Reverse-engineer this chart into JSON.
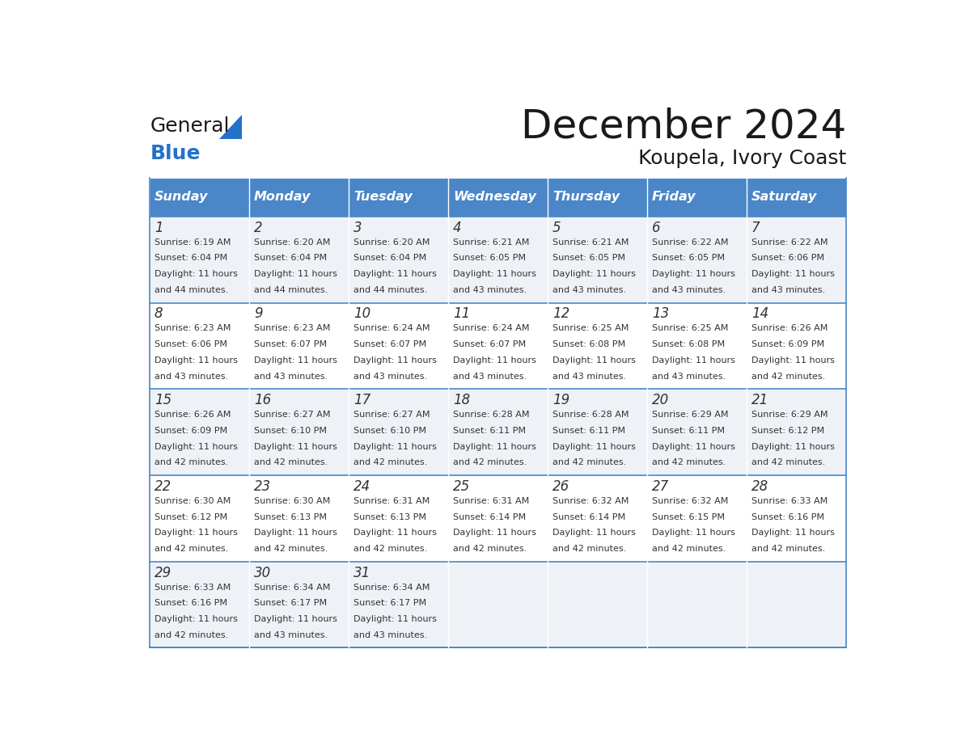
{
  "title": "December 2024",
  "subtitle": "Koupela, Ivory Coast",
  "days_of_week": [
    "Sunday",
    "Monday",
    "Tuesday",
    "Wednesday",
    "Thursday",
    "Friday",
    "Saturday"
  ],
  "header_bg": "#4a86c8",
  "header_text": "#ffffff",
  "row_bg_even": "#eef2f7",
  "row_bg_odd": "#ffffff",
  "border_color": "#4a86c8",
  "text_color": "#333333",
  "day_num_color": "#333333",
  "calendar_data": [
    [
      {
        "day": 1,
        "sunrise": "6:19 AM",
        "sunset": "6:04 PM",
        "daylight": "11 hours and 44 minutes."
      },
      {
        "day": 2,
        "sunrise": "6:20 AM",
        "sunset": "6:04 PM",
        "daylight": "11 hours and 44 minutes."
      },
      {
        "day": 3,
        "sunrise": "6:20 AM",
        "sunset": "6:04 PM",
        "daylight": "11 hours and 44 minutes."
      },
      {
        "day": 4,
        "sunrise": "6:21 AM",
        "sunset": "6:05 PM",
        "daylight": "11 hours and 43 minutes."
      },
      {
        "day": 5,
        "sunrise": "6:21 AM",
        "sunset": "6:05 PM",
        "daylight": "11 hours and 43 minutes."
      },
      {
        "day": 6,
        "sunrise": "6:22 AM",
        "sunset": "6:05 PM",
        "daylight": "11 hours and 43 minutes."
      },
      {
        "day": 7,
        "sunrise": "6:22 AM",
        "sunset": "6:06 PM",
        "daylight": "11 hours and 43 minutes."
      }
    ],
    [
      {
        "day": 8,
        "sunrise": "6:23 AM",
        "sunset": "6:06 PM",
        "daylight": "11 hours and 43 minutes."
      },
      {
        "day": 9,
        "sunrise": "6:23 AM",
        "sunset": "6:07 PM",
        "daylight": "11 hours and 43 minutes."
      },
      {
        "day": 10,
        "sunrise": "6:24 AM",
        "sunset": "6:07 PM",
        "daylight": "11 hours and 43 minutes."
      },
      {
        "day": 11,
        "sunrise": "6:24 AM",
        "sunset": "6:07 PM",
        "daylight": "11 hours and 43 minutes."
      },
      {
        "day": 12,
        "sunrise": "6:25 AM",
        "sunset": "6:08 PM",
        "daylight": "11 hours and 43 minutes."
      },
      {
        "day": 13,
        "sunrise": "6:25 AM",
        "sunset": "6:08 PM",
        "daylight": "11 hours and 43 minutes."
      },
      {
        "day": 14,
        "sunrise": "6:26 AM",
        "sunset": "6:09 PM",
        "daylight": "11 hours and 42 minutes."
      }
    ],
    [
      {
        "day": 15,
        "sunrise": "6:26 AM",
        "sunset": "6:09 PM",
        "daylight": "11 hours and 42 minutes."
      },
      {
        "day": 16,
        "sunrise": "6:27 AM",
        "sunset": "6:10 PM",
        "daylight": "11 hours and 42 minutes."
      },
      {
        "day": 17,
        "sunrise": "6:27 AM",
        "sunset": "6:10 PM",
        "daylight": "11 hours and 42 minutes."
      },
      {
        "day": 18,
        "sunrise": "6:28 AM",
        "sunset": "6:11 PM",
        "daylight": "11 hours and 42 minutes."
      },
      {
        "day": 19,
        "sunrise": "6:28 AM",
        "sunset": "6:11 PM",
        "daylight": "11 hours and 42 minutes."
      },
      {
        "day": 20,
        "sunrise": "6:29 AM",
        "sunset": "6:11 PM",
        "daylight": "11 hours and 42 minutes."
      },
      {
        "day": 21,
        "sunrise": "6:29 AM",
        "sunset": "6:12 PM",
        "daylight": "11 hours and 42 minutes."
      }
    ],
    [
      {
        "day": 22,
        "sunrise": "6:30 AM",
        "sunset": "6:12 PM",
        "daylight": "11 hours and 42 minutes."
      },
      {
        "day": 23,
        "sunrise": "6:30 AM",
        "sunset": "6:13 PM",
        "daylight": "11 hours and 42 minutes."
      },
      {
        "day": 24,
        "sunrise": "6:31 AM",
        "sunset": "6:13 PM",
        "daylight": "11 hours and 42 minutes."
      },
      {
        "day": 25,
        "sunrise": "6:31 AM",
        "sunset": "6:14 PM",
        "daylight": "11 hours and 42 minutes."
      },
      {
        "day": 26,
        "sunrise": "6:32 AM",
        "sunset": "6:14 PM",
        "daylight": "11 hours and 42 minutes."
      },
      {
        "day": 27,
        "sunrise": "6:32 AM",
        "sunset": "6:15 PM",
        "daylight": "11 hours and 42 minutes."
      },
      {
        "day": 28,
        "sunrise": "6:33 AM",
        "sunset": "6:16 PM",
        "daylight": "11 hours and 42 minutes."
      }
    ],
    [
      {
        "day": 29,
        "sunrise": "6:33 AM",
        "sunset": "6:16 PM",
        "daylight": "11 hours and 42 minutes."
      },
      {
        "day": 30,
        "sunrise": "6:34 AM",
        "sunset": "6:17 PM",
        "daylight": "11 hours and 43 minutes."
      },
      {
        "day": 31,
        "sunrise": "6:34 AM",
        "sunset": "6:17 PM",
        "daylight": "11 hours and 43 minutes."
      },
      null,
      null,
      null,
      null
    ]
  ]
}
